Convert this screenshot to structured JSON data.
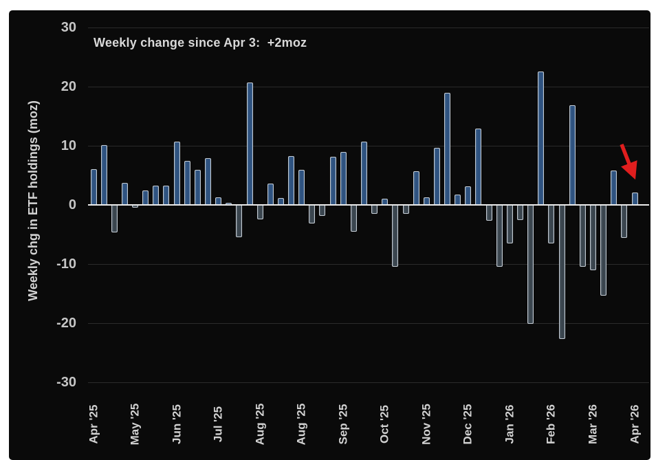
{
  "chart": {
    "background": "#0a0a0a",
    "page_background": "#ffffff",
    "axis_color": "#ececec",
    "gridline_color": "#2b2b2b",
    "tick_label_color": "#c6c6c6",
    "positive_bar_fill": "#2e5280",
    "negative_bar_fill": "#3a454e",
    "bar_outline": "#c5cdd5",
    "arrow_color": "#e01e1e"
  },
  "chart_data": {
    "type": "bar",
    "title": "Weekly change since Apr 3:  +2moz",
    "ylabel": "Weekly chg in ETF holdings (moz)",
    "xlabel": "",
    "ylim": [
      -30,
      30
    ],
    "yticks": [
      30,
      20,
      10,
      0,
      -10,
      -20,
      -30
    ],
    "grid": "faint horizontal gridlines on black background",
    "legend": "none",
    "bar_unit": "weekly observations",
    "x_tick_labels": [
      "Apr '25",
      "May '25",
      "Jun '25",
      "Jul '25",
      "Aug '25",
      "Aug '25",
      "Sep '25",
      "Oct '25",
      "Nov '25",
      "Dec '25",
      "Jan '26",
      "Feb '26",
      "Mar '26",
      "Apr '26"
    ],
    "x_tick_every_n_bars": 4,
    "values": [
      6.0,
      10.1,
      -4.5,
      3.7,
      -0.4,
      2.4,
      3.2,
      3.2,
      10.7,
      7.4,
      5.9,
      7.9,
      1.3,
      0.4,
      -5.4,
      20.7,
      -2.3,
      3.6,
      1.2,
      8.2,
      5.9,
      -3.0,
      -1.7,
      8.1,
      8.9,
      -4.4,
      10.7,
      -1.4,
      1.0,
      -10.4,
      -1.4,
      5.7,
      1.3,
      9.6,
      19.0,
      1.7,
      3.1,
      12.9,
      -2.6,
      -10.4,
      -6.4,
      -2.4,
      -20.0,
      22.6,
      -6.4,
      -22.6,
      16.9,
      -10.4,
      -10.9,
      -15.2,
      5.8,
      -5.5,
      2.1
    ],
    "annotations": [
      {
        "type": "text",
        "text": "Weekly change since Apr 3:  +2moz",
        "position": "top-left"
      },
      {
        "type": "arrow",
        "color": "#e01e1e",
        "points_to": "last bar (Apr '26, +2.1)"
      }
    ]
  }
}
